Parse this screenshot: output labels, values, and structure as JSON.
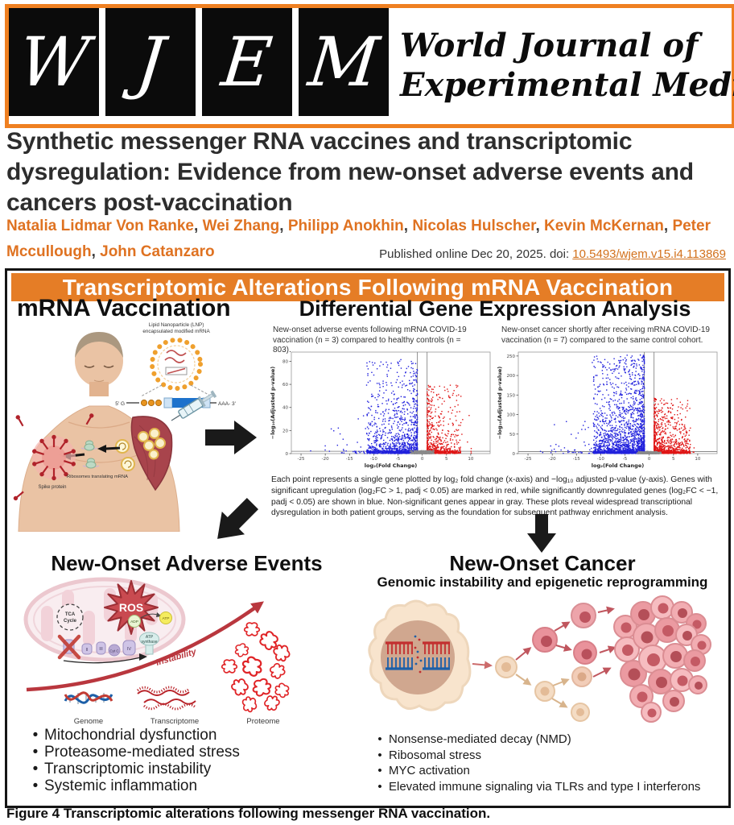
{
  "journal": {
    "logo_letters": [
      "W",
      "J",
      "E",
      "M"
    ],
    "name_line1": "World Journal of",
    "name_line2": "Experimental Medicine"
  },
  "article": {
    "title": "Synthetic messenger RNA vaccines and transcriptomic dysregulation: Evidence from new-onset adverse events and cancers post-vaccination",
    "authors": [
      "Natalia Lidmar Von Ranke",
      "Wei Zhang",
      "Philipp Anokhin",
      "Nicolas Hulscher",
      "Kevin McKernan",
      "Peter Mccullough",
      "John Catanzaro"
    ],
    "published_prefix": "Published online Dec 20, 2025. doi: ",
    "doi": "10.5493/wjem.v15.i4.113869"
  },
  "figure": {
    "banner_title": "Transcriptomic Alterations Following mRNA Vaccination",
    "caption": "Figure 4 Transcriptomic alterations following messenger RNA vaccination.",
    "sections": {
      "vaccination": {
        "heading": "mRNA Vaccination",
        "labels": {
          "lnp_line1": "Lipid Nanoparticle (LNP)",
          "lnp_line2": "encapsulated modified mRNA",
          "five_prime": "5' G",
          "three_prime": "AAA- 3'",
          "ribosomes": "Ribosomes translating mRNA",
          "spike": "Spike protein"
        }
      },
      "dge": {
        "heading": "Differential Gene Expression Analysis",
        "caption": "Each point represents a single gene plotted by log₂ fold change (x-axis) and −log₁₀ adjusted p-value (y-axis). Genes with significant upregulation (log₂FC > 1, padj < 0.05) are marked in red, while significantly downregulated genes (log₂FC < −1, padj < 0.05) are shown in blue. Non-significant genes appear in gray. These plots reveal widespread transcriptional dysregulation in both patient groups, serving as the foundation for subsequent pathway enrichment analysis."
      },
      "adverse": {
        "heading": "New-Onset Adverse Events",
        "illustration": {
          "ros": "ROS",
          "tca_line1": "TCA",
          "tca_line2": "Cycle",
          "adp": "ADP",
          "atp": "ATP",
          "synthase_line1": "ATP",
          "synthase_line2": "synthase",
          "cytc": "Cyt C",
          "complexes": [
            "I",
            "II",
            "III",
            "IV"
          ],
          "instability": "Instability",
          "genome": "Genome",
          "transcriptome": "Transcriptome",
          "proteome": "Proteome"
        },
        "bullets": [
          "Mitochondrial dysfunction",
          "Proteasome-mediated stress",
          "Transcriptomic instability",
          "Systemic inflammation"
        ]
      },
      "cancer": {
        "heading": "New-Onset Cancer",
        "subheading": "Genomic instability and epigenetic reprogramming",
        "bullets": [
          "Nonsense-mediated decay (NMD)",
          "Ribosomal stress",
          "MYC activation",
          "Elevated immune signaling via TLRs and type I interferons"
        ]
      }
    }
  },
  "colors": {
    "accent_orange": "#EF8021",
    "banner_orange": "#E57D26",
    "author_orange": "#DF7221",
    "upregulated_red": "#E01616",
    "downregulated_blue": "#2222DD",
    "nonsignificant_gray": "#8A8A8A"
  },
  "chart_data": [
    {
      "type": "scatter",
      "variant": "volcano",
      "title": "New-onset adverse events following mRNA COVID-19 vaccination (n = 3) compared to healthy controls (n = 803).",
      "xlabel": "log₂(Fold Change)",
      "ylabel": "−log₁₀(Adjusted p-value)",
      "xlim": [
        -27,
        14
      ],
      "ylim": [
        0,
        88
      ],
      "xticks": [
        -25,
        -20,
        -15,
        -10,
        -5,
        0,
        5,
        10
      ],
      "yticks": [
        0,
        20,
        40,
        60,
        80
      ],
      "vlines": [
        -1,
        1
      ],
      "hline": 2,
      "thresholds": {
        "log2fc": 1,
        "padj": 0.05
      },
      "grid": false,
      "seed": 42,
      "groups": [
        {
          "name": "downregulated (log₂FC < −1, padj < 0.05)",
          "color": "#2222dd",
          "n": 1500,
          "sign": -1,
          "spread": 10.5,
          "power": 1.7,
          "tail": 14,
          "ymax": 80,
          "ypow": 5
        },
        {
          "name": "upregulated (log₂FC > 1, padj < 0.05)",
          "color": "#e01616",
          "n": 900,
          "sign": 1,
          "spread": 7,
          "power": 2.2,
          "tail": 6,
          "ymax": 58,
          "ypow": 5.5
        },
        {
          "name": "non-significant",
          "color": "#8a8a8a",
          "n": 600,
          "sign": 0,
          "spread": 2.6,
          "ymax": 3
        }
      ]
    },
    {
      "type": "scatter",
      "variant": "volcano",
      "title": "New-onset cancer shortly after receiving mRNA COVID-19 vaccination (n = 7) compared to the same control cohort.",
      "xlabel": "log₂(Fold Change)",
      "ylabel": "−log₁₀(Adjusted p-value)",
      "xlim": [
        -27,
        14
      ],
      "ylim": [
        0,
        260
      ],
      "xticks": [
        -25,
        -20,
        -15,
        -10,
        -5,
        0,
        5,
        10
      ],
      "yticks": [
        0,
        50,
        100,
        150,
        200,
        250
      ],
      "vlines": [
        -1,
        1
      ],
      "hline": 5,
      "thresholds": {
        "log2fc": 1,
        "padj": 0.05
      },
      "grid": false,
      "seed": 7,
      "groups": [
        {
          "name": "downregulated (log₂FC < −1, padj < 0.05)",
          "color": "#2222dd",
          "n": 2300,
          "sign": -1,
          "spread": 10.5,
          "power": 1.7,
          "tail": 13,
          "ymax": 250,
          "ypow": 4.2
        },
        {
          "name": "upregulated (log₂FC > 1, padj < 0.05)",
          "color": "#e01616",
          "n": 1200,
          "sign": 1,
          "spread": 7.5,
          "power": 2.2,
          "tail": 5,
          "ymax": 140,
          "ypow": 5
        },
        {
          "name": "non-significant",
          "color": "#8a8a8a",
          "n": 700,
          "sign": 0,
          "spread": 2.6,
          "ymax": 6
        }
      ]
    }
  ]
}
